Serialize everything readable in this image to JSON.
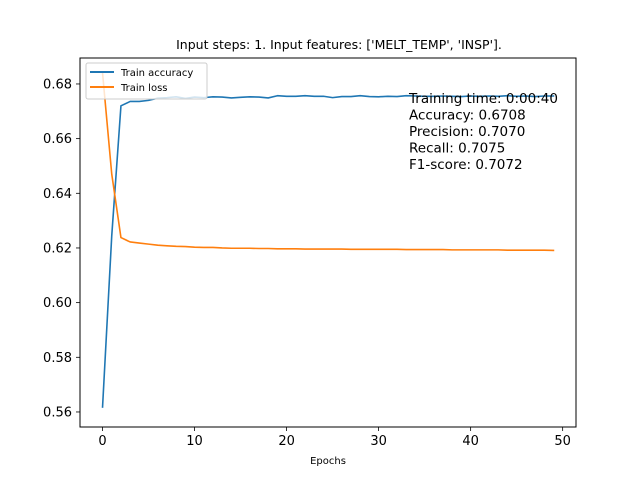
{
  "chart_data": {
    "type": "line",
    "title": "Input steps: 1. Input features: ['MELT_TEMP', 'INSP'].",
    "xlabel": "Epochs",
    "ylabel": "",
    "xlim": [
      -2.45,
      51.45
    ],
    "ylim": [
      0.5545,
      0.6895
    ],
    "xticks": [
      0,
      10,
      20,
      30,
      40,
      50
    ],
    "yticks": [
      0.56,
      0.58,
      0.6,
      0.62,
      0.64,
      0.66,
      0.68
    ],
    "ytick_labels": [
      "0.56",
      "0.58",
      "0.60",
      "0.62",
      "0.64",
      "0.66",
      "0.68"
    ],
    "xtick_labels": [
      "0",
      "10",
      "20",
      "30",
      "40",
      "50"
    ],
    "grid": false,
    "legend_position": "top-left",
    "series": [
      {
        "name": "Train accuracy",
        "color": "#1f77b4",
        "x": [
          0,
          1,
          2,
          3,
          4,
          5,
          6,
          7,
          8,
          9,
          10,
          11,
          12,
          13,
          14,
          15,
          16,
          17,
          18,
          19,
          20,
          21,
          22,
          23,
          24,
          25,
          26,
          27,
          28,
          29,
          30,
          31,
          32,
          33,
          34,
          35,
          36,
          37,
          38,
          39,
          40,
          41,
          42,
          43,
          44,
          45,
          46,
          47,
          48,
          49
        ],
        "y": [
          0.5618,
          0.6245,
          0.672,
          0.6736,
          0.6736,
          0.674,
          0.6748,
          0.675,
          0.6753,
          0.6747,
          0.6752,
          0.675,
          0.6753,
          0.6752,
          0.6749,
          0.6751,
          0.6753,
          0.6752,
          0.6749,
          0.6757,
          0.6755,
          0.6755,
          0.6757,
          0.6755,
          0.6755,
          0.675,
          0.6754,
          0.6754,
          0.6757,
          0.6754,
          0.6753,
          0.6755,
          0.6754,
          0.6757,
          0.6756,
          0.6755,
          0.6755,
          0.6756,
          0.6755,
          0.6754,
          0.6756,
          0.6755,
          0.6756,
          0.6755,
          0.6757,
          0.6755,
          0.6756,
          0.6754,
          0.6756,
          0.6756
        ]
      },
      {
        "name": "Train loss",
        "color": "#ff7f0e",
        "x": [
          0,
          1,
          2,
          3,
          4,
          5,
          6,
          7,
          8,
          9,
          10,
          11,
          12,
          13,
          14,
          15,
          16,
          17,
          18,
          19,
          20,
          21,
          22,
          23,
          24,
          25,
          26,
          27,
          28,
          29,
          30,
          31,
          32,
          33,
          34,
          35,
          36,
          37,
          38,
          39,
          40,
          41,
          42,
          43,
          44,
          45,
          46,
          47,
          48,
          49
        ],
        "y": [
          0.684,
          0.647,
          0.6238,
          0.6222,
          0.6218,
          0.6214,
          0.621,
          0.6208,
          0.6206,
          0.6205,
          0.6203,
          0.6202,
          0.6202,
          0.62,
          0.6199,
          0.6199,
          0.6199,
          0.6198,
          0.6198,
          0.6197,
          0.6197,
          0.6197,
          0.6196,
          0.6196,
          0.6196,
          0.6196,
          0.6196,
          0.6195,
          0.6195,
          0.6195,
          0.6195,
          0.6195,
          0.6195,
          0.6194,
          0.6194,
          0.6194,
          0.6194,
          0.6194,
          0.6193,
          0.6193,
          0.6193,
          0.6193,
          0.6193,
          0.6193,
          0.6192,
          0.6192,
          0.6192,
          0.6192,
          0.6192,
          0.6191
        ]
      }
    ],
    "annotations": [
      "Training time: 0:00:40",
      "Accuracy: 0.6708",
      "Precision: 0.7070",
      "Recall: 0.7075",
      "F1-score: 0.7072"
    ]
  }
}
